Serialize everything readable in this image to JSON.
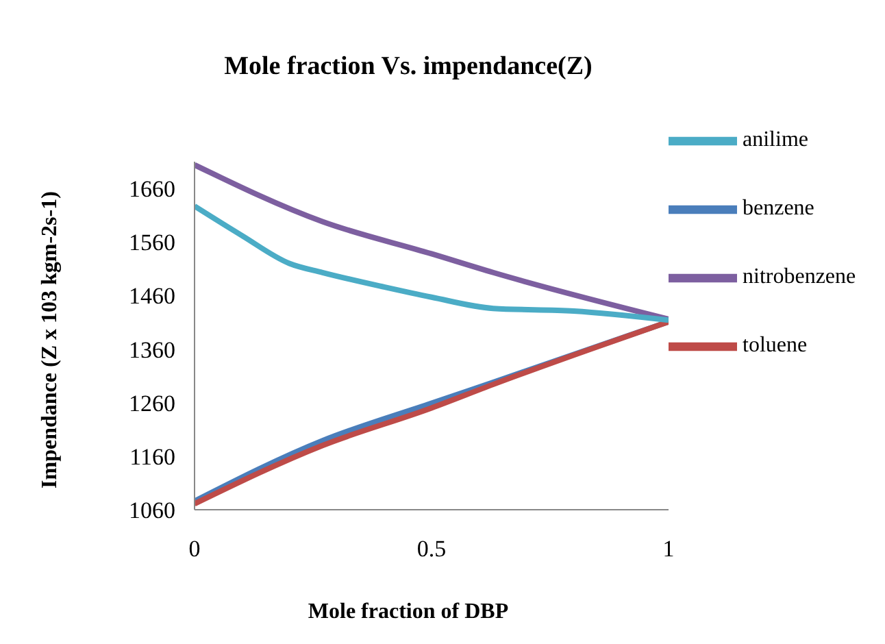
{
  "chart_data": {
    "type": "line",
    "title": "Mole fraction Vs. impendance(Z)",
    "xlabel": "Mole fraction  of DBP",
    "ylabel": "Impendance (Z x 103 kgm-2s-1)",
    "xlim": [
      0,
      1
    ],
    "xticks": [
      0,
      0.5,
      1
    ],
    "ylim": [
      1060,
      1710
    ],
    "yticks": [
      1060,
      1160,
      1260,
      1360,
      1460,
      1560,
      1660
    ],
    "grid": false,
    "legend": "right",
    "marker": "none",
    "line_style": "solid",
    "series": [
      {
        "name": "benzene",
        "color": "#4a7ebb",
        "x": [
          0,
          0.27,
          0.5,
          0.63,
          1
        ],
        "values": [
          1076,
          1189,
          1259,
          1298,
          1411
        ]
      },
      {
        "name": "toluene",
        "color": "#be4b48",
        "x": [
          0,
          0.27,
          0.5,
          0.63,
          1
        ],
        "values": [
          1071,
          1180,
          1250,
          1294,
          1411
        ]
      },
      {
        "name": "nitrobenzene",
        "color": "#7d5fa0",
        "x": [
          0,
          0.27,
          0.5,
          0.63,
          1
        ],
        "values": [
          1704,
          1598,
          1538,
          1503,
          1416
        ]
      },
      {
        "name": "anilime",
        "color": "#4bacc6",
        "x": [
          0,
          0.1,
          0.2,
          0.27,
          0.4,
          0.5,
          0.63,
          0.8,
          1
        ],
        "values": [
          1627,
          1572,
          1520,
          1503,
          1476,
          1457,
          1436,
          1431,
          1414
        ]
      }
    ]
  }
}
